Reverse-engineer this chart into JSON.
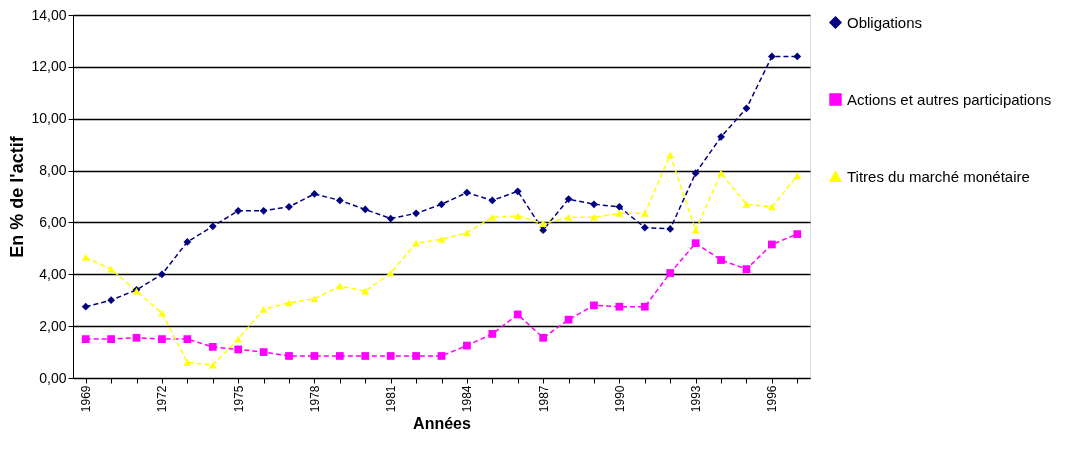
{
  "chart_data": {
    "type": "line",
    "xlabel": "Années",
    "ylabel": "En % de l'actif",
    "categories": [
      "1969",
      null,
      null,
      "1972",
      null,
      null,
      "1975",
      null,
      null,
      "1978",
      null,
      null,
      "1981",
      null,
      null,
      "1984",
      null,
      null,
      "1987",
      null,
      null,
      "1990",
      null,
      null,
      "1993",
      null,
      null,
      "1996",
      null
    ],
    "series": [
      {
        "name": "Obligations",
        "color": "#000080",
        "marker": "diamond",
        "line_style": "dashed",
        "values": [
          2.75,
          3.0,
          3.4,
          4.0,
          5.25,
          5.85,
          6.45,
          6.45,
          6.6,
          7.1,
          6.85,
          6.5,
          6.15,
          6.35,
          6.7,
          7.15,
          6.85,
          7.2,
          5.7,
          6.9,
          6.7,
          6.6,
          5.8,
          5.75,
          7.9,
          9.3,
          10.4,
          12.4,
          12.4
        ]
      },
      {
        "name": "Actions et autres participations",
        "color": "#ff00ff",
        "marker": "square",
        "line_style": "dashed",
        "values": [
          1.5,
          1.5,
          1.55,
          1.5,
          1.5,
          1.2,
          1.1,
          1.0,
          0.85,
          0.85,
          0.85,
          0.85,
          0.85,
          0.85,
          0.85,
          1.25,
          1.7,
          2.45,
          1.55,
          2.25,
          2.8,
          2.75,
          2.75,
          4.05,
          5.2,
          4.55,
          4.2,
          5.15,
          5.55
        ]
      },
      {
        "name": "Titres du marché monétaire",
        "color": "#ffff00",
        "marker": "triangle",
        "line_style": "dashed",
        "values": [
          4.65,
          4.2,
          3.35,
          2.5,
          0.6,
          0.5,
          1.5,
          2.65,
          2.9,
          3.05,
          3.55,
          3.35,
          4.05,
          5.2,
          5.35,
          5.6,
          6.2,
          6.25,
          5.95,
          6.2,
          6.2,
          6.35,
          6.35,
          8.6,
          5.7,
          7.9,
          6.7,
          6.6,
          7.8
        ]
      }
    ],
    "ylim": [
      0,
      14
    ],
    "yticks": [
      {
        "value": 0,
        "label": "0,00"
      },
      {
        "value": 2,
        "label": "2,00"
      },
      {
        "value": 4,
        "label": "4,00"
      },
      {
        "value": 6,
        "label": "6,00"
      },
      {
        "value": 8,
        "label": "8,00"
      },
      {
        "value": 10,
        "label": "10,00"
      },
      {
        "value": 12,
        "label": "12,00"
      },
      {
        "value": 14,
        "label": "14,00"
      }
    ],
    "grid": "y",
    "legend": "right"
  }
}
